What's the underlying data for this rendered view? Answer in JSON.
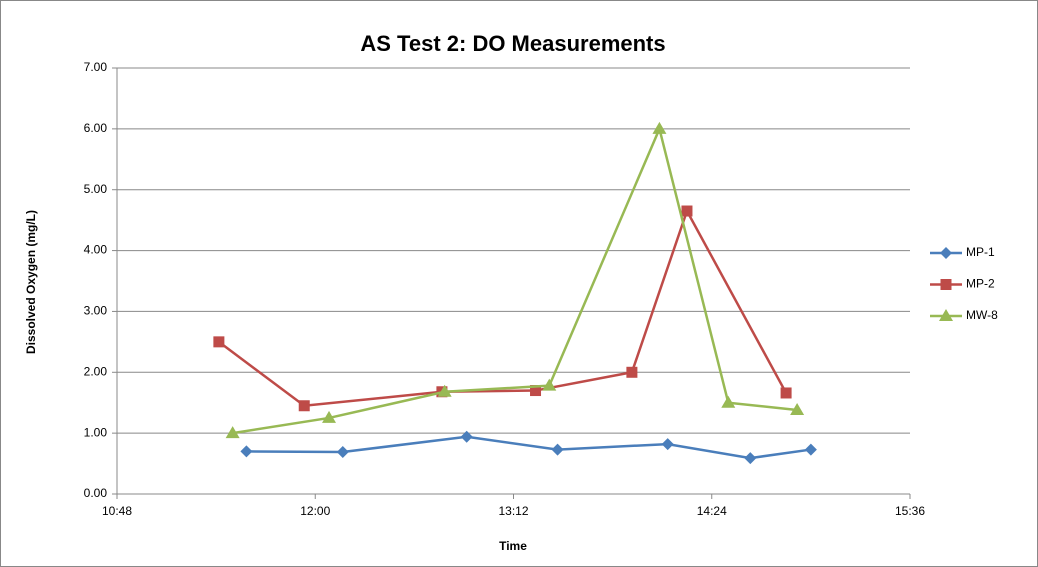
{
  "chart_data": {
    "type": "line",
    "title": "AS Test 2: DO Measurements",
    "x_label": "Time",
    "y_label": "Dissolved Oxygen (mg/L)",
    "xlim": [
      648,
      936
    ],
    "xticks": [
      {
        "value": 648,
        "label": "10:48"
      },
      {
        "value": 720,
        "label": "12:00"
      },
      {
        "value": 792,
        "label": "13:12"
      },
      {
        "value": 864,
        "label": "14:24"
      },
      {
        "value": 936,
        "label": "15:36"
      }
    ],
    "ylim": [
      0,
      7
    ],
    "yticks": [
      {
        "value": 0,
        "label": "0.00"
      },
      {
        "value": 1,
        "label": "1.00"
      },
      {
        "value": 2,
        "label": "2.00"
      },
      {
        "value": 3,
        "label": "3.00"
      },
      {
        "value": 4,
        "label": "4.00"
      },
      {
        "value": 5,
        "label": "5.00"
      },
      {
        "value": 6,
        "label": "6.00"
      },
      {
        "value": 7,
        "label": "7.00"
      }
    ],
    "grid": true,
    "legend": "right",
    "series": [
      {
        "name": "MP-1",
        "color": "#4a7ebb",
        "marker": "diamond",
        "x": [
          695,
          730,
          775,
          808,
          848,
          878,
          900
        ],
        "values": [
          0.7,
          0.69,
          0.94,
          0.73,
          0.82,
          0.59,
          0.73
        ]
      },
      {
        "name": "MP-2",
        "color": "#be4b48",
        "marker": "square",
        "x": [
          685,
          716,
          766,
          800,
          835,
          855,
          891
        ],
        "values": [
          2.5,
          1.45,
          1.68,
          1.7,
          2.0,
          4.65,
          1.66
        ]
      },
      {
        "name": "MW-8",
        "color": "#98b954",
        "marker": "triangle",
        "x": [
          690,
          725,
          767,
          805,
          845,
          870,
          895
        ],
        "values": [
          1.0,
          1.25,
          1.68,
          1.78,
          6.0,
          1.5,
          1.38
        ]
      }
    ]
  }
}
